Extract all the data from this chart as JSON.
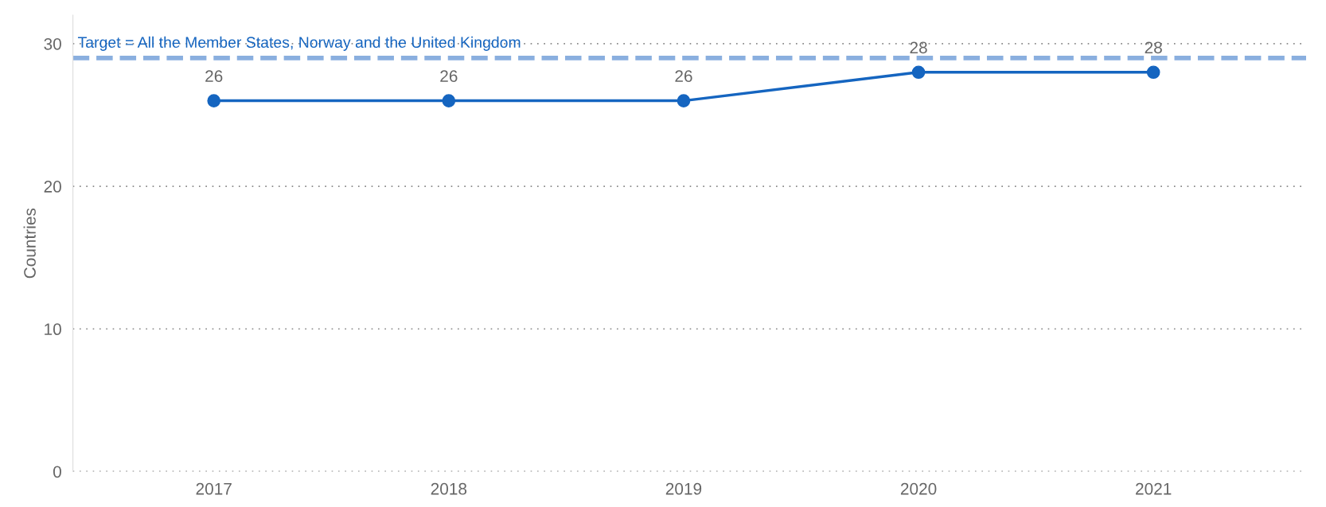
{
  "chart_data": {
    "type": "line",
    "ylabel": "Countries",
    "categories": [
      "2017",
      "2018",
      "2019",
      "2020",
      "2021"
    ],
    "series": [
      {
        "color": "#1565c0",
        "values": [
          26,
          26,
          26,
          28,
          28
        ]
      }
    ],
    "ylim": [
      0,
      32
    ],
    "yticks": [
      0,
      10,
      20,
      30
    ],
    "grid": "y",
    "marker": "circle",
    "line_style": "solid",
    "data_labels": true,
    "ref_lines": [
      {
        "axis": "y",
        "value": 29,
        "label": "Target = All the Member States, Norway and the United Kingdom",
        "color": "#8aafdf",
        "line_style": "dashed"
      }
    ]
  }
}
